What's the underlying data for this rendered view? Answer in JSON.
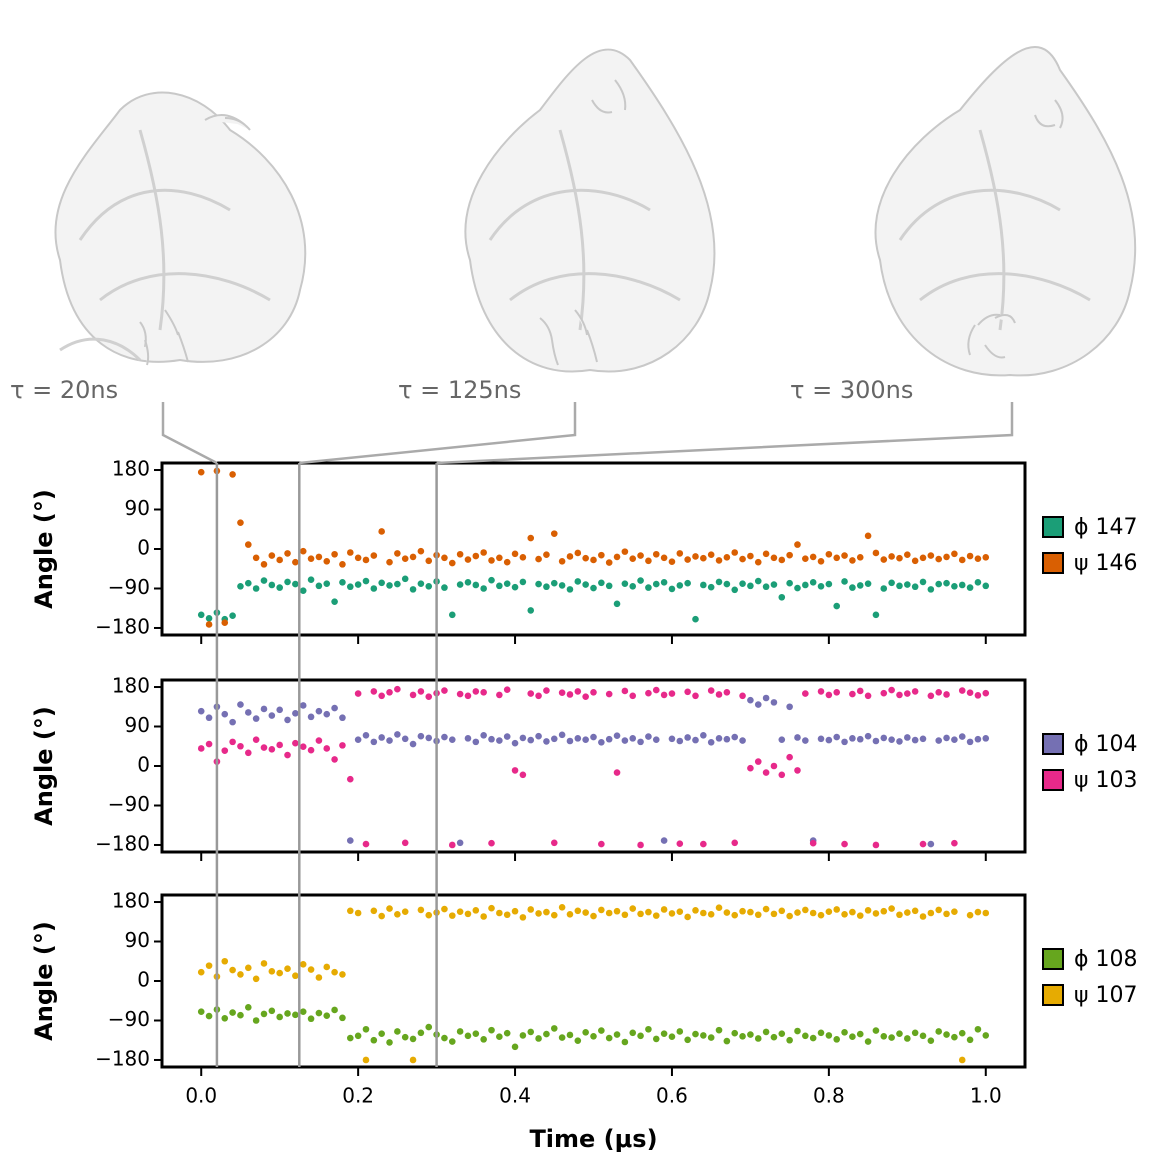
{
  "snapshots": [
    {
      "time": 0.02,
      "label": "τ = 20ns"
    },
    {
      "time": 0.125,
      "label": "τ = 125ns"
    },
    {
      "time": 0.3,
      "label": "τ = 300ns"
    }
  ],
  "chart_data": [
    {
      "type": "scatter",
      "ylabel": "Angle (°)",
      "x": [
        0,
        0.01,
        0.02,
        0.03,
        0.04,
        0.05,
        0.06,
        0.07,
        0.08,
        0.09,
        0.1,
        0.11,
        0.12,
        0.13,
        0.14,
        0.15,
        0.16,
        0.17,
        0.18,
        0.19,
        0.2,
        0.21,
        0.22,
        0.23,
        0.24,
        0.25,
        0.26,
        0.27,
        0.28,
        0.29,
        0.3,
        0.31,
        0.32,
        0.33,
        0.34,
        0.35,
        0.36,
        0.37,
        0.38,
        0.39,
        0.4,
        0.41,
        0.42,
        0.43,
        0.44,
        0.45,
        0.46,
        0.47,
        0.48,
        0.49,
        0.5,
        0.51,
        0.52,
        0.53,
        0.54,
        0.55,
        0.56,
        0.57,
        0.58,
        0.59,
        0.6,
        0.61,
        0.62,
        0.63,
        0.64,
        0.65,
        0.66,
        0.67,
        0.68,
        0.69,
        0.7,
        0.71,
        0.72,
        0.73,
        0.74,
        0.75,
        0.76,
        0.77,
        0.78,
        0.79,
        0.8,
        0.81,
        0.82,
        0.83,
        0.84,
        0.85,
        0.86,
        0.87,
        0.88,
        0.89,
        0.9,
        0.91,
        0.92,
        0.93,
        0.94,
        0.95,
        0.96,
        0.97,
        0.98,
        0.99,
        1
      ],
      "series": [
        {
          "name": "ϕ 147",
          "color": "#1b9e77",
          "values": [
            -150,
            -158,
            -145,
            -160,
            -152,
            -85,
            -78,
            -90,
            -72,
            -82,
            -88,
            -75,
            -80,
            -95,
            -70,
            -84,
            -79,
            -120,
            -76,
            -86,
            -81,
            -73,
            -90,
            -77,
            -83,
            -80,
            -68,
            -92,
            -79,
            -85,
            -74,
            -88,
            -150,
            -81,
            -76,
            -82,
            -90,
            -71,
            -84,
            -79,
            -87,
            -75,
            -140,
            -80,
            -86,
            -78,
            -83,
            -92,
            -74,
            -81,
            -89,
            -77,
            -84,
            -125,
            -79,
            -85,
            -72,
            -88,
            -80,
            -76,
            -91,
            -83,
            -78,
            -160,
            -82,
            -87,
            -75,
            -80,
            -93,
            -79,
            -84,
            -73,
            -86,
            -81,
            -110,
            -78,
            -89,
            -82,
            -76,
            -85,
            -80,
            -130,
            -74,
            -88,
            -83,
            -79,
            -150,
            -90,
            -77,
            -84,
            -81,
            -86,
            -75,
            -92,
            -80,
            -78,
            -85,
            -82,
            -88,
            -76,
            -84
          ]
        },
        {
          "name": "ψ 146",
          "color": "#d95f02",
          "values": [
            175,
            -172,
            178,
            -168,
            170,
            60,
            10,
            -20,
            -35,
            -15,
            -25,
            -10,
            -30,
            -5,
            -22,
            -18,
            -28,
            -12,
            -35,
            -8,
            -20,
            -25,
            -15,
            40,
            -30,
            -10,
            -22,
            -18,
            -5,
            -27,
            -14,
            -20,
            -32,
            -12,
            -24,
            -16,
            -8,
            -26,
            -20,
            -30,
            -11,
            -19,
            25,
            -23,
            -13,
            35,
            -28,
            -17,
            -9,
            -21,
            -25,
            -14,
            -31,
            -18,
            -6,
            -22,
            -15,
            -27,
            -12,
            -20,
            -29,
            -10,
            -24,
            -17,
            -21,
            -13,
            -26,
            -19,
            -8,
            -23,
            -16,
            -30,
            -11,
            -20,
            -25,
            -14,
            10,
            -22,
            -18,
            -28,
            -12,
            -20,
            -15,
            -26,
            -19,
            30,
            -9,
            -24,
            -17,
            -21,
            -13,
            -27,
            -20,
            -15,
            -23,
            -18,
            -11,
            -25,
            -16,
            -22,
            -19
          ]
        }
      ],
      "xlim": [
        -0.05,
        1.05
      ],
      "xticks": [
        0,
        0.2,
        0.4,
        0.6,
        0.8,
        1
      ],
      "ylim": [
        -196,
        196
      ],
      "yticks": [
        {
          "value": -180,
          "label": "−180"
        },
        {
          "value": -90,
          "label": "−90"
        },
        0,
        90,
        180
      ]
    },
    {
      "type": "scatter",
      "ylabel": "Angle (°)",
      "x": [
        0,
        0.01,
        0.02,
        0.03,
        0.04,
        0.05,
        0.06,
        0.07,
        0.08,
        0.09,
        0.1,
        0.11,
        0.12,
        0.13,
        0.14,
        0.15,
        0.16,
        0.17,
        0.18,
        0.19,
        0.2,
        0.21,
        0.22,
        0.23,
        0.24,
        0.25,
        0.26,
        0.27,
        0.28,
        0.29,
        0.3,
        0.31,
        0.32,
        0.33,
        0.34,
        0.35,
        0.36,
        0.37,
        0.38,
        0.39,
        0.4,
        0.41,
        0.42,
        0.43,
        0.44,
        0.45,
        0.46,
        0.47,
        0.48,
        0.49,
        0.5,
        0.51,
        0.52,
        0.53,
        0.54,
        0.55,
        0.56,
        0.57,
        0.58,
        0.59,
        0.6,
        0.61,
        0.62,
        0.63,
        0.64,
        0.65,
        0.66,
        0.67,
        0.68,
        0.69,
        0.7,
        0.71,
        0.72,
        0.73,
        0.74,
        0.75,
        0.76,
        0.77,
        0.78,
        0.79,
        0.8,
        0.81,
        0.82,
        0.83,
        0.84,
        0.85,
        0.86,
        0.87,
        0.88,
        0.89,
        0.9,
        0.91,
        0.92,
        0.93,
        0.94,
        0.95,
        0.96,
        0.97,
        0.98,
        0.99,
        1
      ],
      "series": [
        {
          "name": "ϕ 104",
          "color": "#7570b3",
          "values": [
            125,
            110,
            135,
            118,
            100,
            140,
            122,
            108,
            130,
            115,
            128,
            105,
            120,
            138,
            112,
            125,
            118,
            132,
            110,
            -170,
            60,
            70,
            55,
            65,
            58,
            72,
            62,
            50,
            68,
            64,
            57,
            66,
            60,
            -175,
            63,
            55,
            70,
            61,
            58,
            67,
            52,
            64,
            59,
            68,
            56,
            62,
            71,
            57,
            63,
            60,
            66,
            54,
            61,
            69,
            58,
            63,
            55,
            67,
            60,
            -170,
            62,
            57,
            65,
            59,
            70,
            54,
            63,
            61,
            66,
            58,
            150,
            140,
            155,
            145,
            60,
            135,
            65,
            58,
            -170,
            62,
            59,
            66,
            55,
            63,
            61,
            68,
            57,
            64,
            60,
            56,
            65,
            59,
            62,
            -178,
            58,
            64,
            60,
            67,
            55,
            61,
            63
          ]
        },
        {
          "name": "ψ 103",
          "color": "#e7298a",
          "values": [
            40,
            50,
            10,
            35,
            55,
            45,
            30,
            60,
            42,
            38,
            48,
            25,
            52,
            44,
            36,
            58,
            40,
            15,
            47,
            -30,
            165,
            -178,
            170,
            160,
            168,
            175,
            -175,
            162,
            170,
            158,
            166,
            172,
            -180,
            164,
            160,
            170,
            168,
            -176,
            162,
            174,
            -10,
            -20,
            165,
            160,
            172,
            -175,
            167,
            163,
            170,
            158,
            168,
            -178,
            164,
            -15,
            171,
            160,
            -180,
            166,
            173,
            162,
            165,
            -177,
            169,
            160,
            -178,
            172,
            163,
            168,
            -175,
            160,
            -5,
            10,
            -15,
            0,
            -20,
            20,
            -10,
            165,
            -176,
            170,
            162,
            168,
            -178,
            164,
            171,
            160,
            -180,
            166,
            173,
            162,
            165,
            170,
            -178,
            160,
            168,
            163,
            -176,
            172,
            167,
            161,
            166
          ]
        }
      ],
      "xlim": [
        -0.05,
        1.05
      ],
      "xticks": [
        0,
        0.2,
        0.4,
        0.6,
        0.8,
        1
      ],
      "ylim": [
        -196,
        196
      ],
      "yticks": [
        {
          "value": -180,
          "label": "−180"
        },
        {
          "value": -90,
          "label": "−90"
        },
        0,
        90,
        180
      ]
    },
    {
      "type": "scatter",
      "ylabel": "Angle (°)",
      "xlabel": "Time (μs)",
      "x": [
        0,
        0.01,
        0.02,
        0.03,
        0.04,
        0.05,
        0.06,
        0.07,
        0.08,
        0.09,
        0.1,
        0.11,
        0.12,
        0.13,
        0.14,
        0.15,
        0.16,
        0.17,
        0.18,
        0.19,
        0.2,
        0.21,
        0.22,
        0.23,
        0.24,
        0.25,
        0.26,
        0.27,
        0.28,
        0.29,
        0.3,
        0.31,
        0.32,
        0.33,
        0.34,
        0.35,
        0.36,
        0.37,
        0.38,
        0.39,
        0.4,
        0.41,
        0.42,
        0.43,
        0.44,
        0.45,
        0.46,
        0.47,
        0.48,
        0.49,
        0.5,
        0.51,
        0.52,
        0.53,
        0.54,
        0.55,
        0.56,
        0.57,
        0.58,
        0.59,
        0.6,
        0.61,
        0.62,
        0.63,
        0.64,
        0.65,
        0.66,
        0.67,
        0.68,
        0.69,
        0.7,
        0.71,
        0.72,
        0.73,
        0.74,
        0.75,
        0.76,
        0.77,
        0.78,
        0.79,
        0.8,
        0.81,
        0.82,
        0.83,
        0.84,
        0.85,
        0.86,
        0.87,
        0.88,
        0.89,
        0.9,
        0.91,
        0.92,
        0.93,
        0.94,
        0.95,
        0.96,
        0.97,
        0.98,
        0.99,
        1
      ],
      "series": [
        {
          "name": "ϕ 108",
          "color": "#66a61e",
          "values": [
            -70,
            -80,
            -65,
            -85,
            -72,
            -78,
            -60,
            -90,
            -75,
            -68,
            -82,
            -74,
            -77,
            -70,
            -86,
            -73,
            -79,
            -66,
            -84,
            -130,
            -125,
            -110,
            -135,
            -120,
            -140,
            -115,
            -128,
            -132,
            -118,
            -105,
            -122,
            -130,
            -138,
            -115,
            -125,
            -120,
            -133,
            -112,
            -127,
            -119,
            -150,
            -124,
            -116,
            -131,
            -121,
            -108,
            -129,
            -123,
            -136,
            -117,
            -126,
            -113,
            -130,
            -122,
            -139,
            -118,
            -125,
            -110,
            -132,
            -120,
            -127,
            -115,
            -134,
            -121,
            -124,
            -129,
            -112,
            -137,
            -119,
            -126,
            -122,
            -131,
            -116,
            -128,
            -120,
            -135,
            -114,
            -125,
            -130,
            -118,
            -124,
            -133,
            -117,
            -127,
            -121,
            -138,
            -113,
            -126,
            -129,
            -120,
            -131,
            -118,
            -125,
            -136,
            -115,
            -122,
            -128,
            -119,
            -134,
            -110,
            -124
          ]
        },
        {
          "name": "ψ 107",
          "color": "#e6ab02",
          "values": [
            20,
            35,
            10,
            45,
            25,
            15,
            30,
            5,
            40,
            22,
            18,
            28,
            12,
            38,
            26,
            8,
            32,
            20,
            15,
            160,
            155,
            -180,
            160,
            148,
            165,
            152,
            158,
            -180,
            162,
            150,
            156,
            164,
            149,
            158,
            153,
            161,
            147,
            166,
            155,
            151,
            159,
            145,
            163,
            154,
            157,
            150,
            168,
            152,
            160,
            156,
            148,
            162,
            155,
            159,
            151,
            165,
            153,
            157,
            149,
            163,
            154,
            158,
            146,
            161,
            155,
            152,
            167,
            156,
            150,
            159,
            157,
            151,
            164,
            153,
            160,
            148,
            156,
            162,
            155,
            150,
            158,
            163,
            152,
            157,
            149,
            161,
            154,
            159,
            165,
            151,
            156,
            160,
            147,
            155,
            162,
            153,
            158,
            -180,
            150,
            157,
            155
          ]
        }
      ],
      "xlim": [
        -0.05,
        1.05
      ],
      "xticks": [
        {
          "value": 0,
          "label": "0.0"
        },
        0.2,
        0.4,
        0.6,
        0.8,
        {
          "value": 1,
          "label": "1.0"
        }
      ],
      "ylim": [
        -196,
        196
      ],
      "yticks": [
        {
          "value": -180,
          "label": "−180"
        },
        {
          "value": -90,
          "label": "−90"
        },
        0,
        90,
        180
      ]
    }
  ]
}
